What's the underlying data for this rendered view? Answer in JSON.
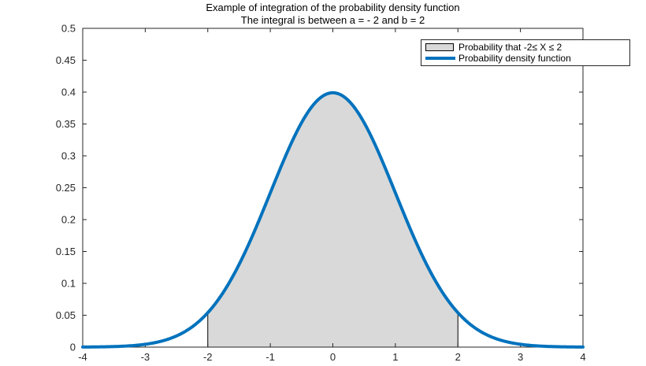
{
  "title": {
    "line1": "Example of integration of the probability density function",
    "line2": "The integral is between a = - 2 and b = 2"
  },
  "legend": {
    "position": "top-right",
    "entries": [
      {
        "label": "Probability that -2≤ X ≤ 2",
        "swatch": "area",
        "fill": "#D9D9D9",
        "edge": "#000000"
      },
      {
        "label": "Probability density function",
        "swatch": "line",
        "color": "#0072BD"
      }
    ]
  },
  "axes": {
    "box_color": "#262626",
    "tick_color": "#262626",
    "tick_label_color": "#262626",
    "tick_length": 5,
    "ticks_direction": "in",
    "box": true,
    "grid": false
  },
  "chart_data": {
    "type": "area",
    "title": "Example of integration of the probability density function",
    "subtitle": "The integral is between a = - 2 and b = 2",
    "xlabel": "",
    "ylabel": "",
    "xlim": [
      -4,
      4
    ],
    "ylim": [
      0,
      0.5
    ],
    "x_ticks": {
      "values": [
        -4,
        -3,
        -2,
        -1,
        0,
        1,
        2,
        3,
        4
      ],
      "labels": [
        "-4",
        "-3",
        "-2",
        "-1",
        "0",
        "1",
        "2",
        "3",
        "4"
      ]
    },
    "y_ticks": {
      "values": [
        0,
        0.05,
        0.1,
        0.15,
        0.2,
        0.25,
        0.3,
        0.35,
        0.4,
        0.45,
        0.5
      ],
      "labels": [
        "0",
        "0.05",
        "0.1",
        "0.15",
        "0.2",
        "0.25",
        "0.3",
        "0.35",
        "0.4",
        "0.45",
        "0.5"
      ]
    },
    "curve": {
      "name": "Probability density function",
      "color": "#0072BD",
      "line_width": 4,
      "distribution": {
        "type": "normal",
        "mean": 0,
        "sigma": 1
      },
      "samples": {
        "x": [
          -4,
          -3.5,
          -3,
          -2.5,
          -2,
          -1.5,
          -1,
          -0.5,
          0,
          0.5,
          1,
          1.5,
          2,
          2.5,
          3,
          3.5,
          4
        ],
        "y": [
          0.0001,
          0.0009,
          0.0044,
          0.0175,
          0.054,
          0.1295,
          0.242,
          0.3521,
          0.3989,
          0.3521,
          0.242,
          0.1295,
          0.054,
          0.0175,
          0.0044,
          0.0009,
          0.0001
        ]
      }
    },
    "shaded_region": {
      "name": "Probability that -2≤ X ≤ 2",
      "x_from": -2,
      "x_to": 2,
      "fill": "#D9D9D9",
      "edge": "#000000"
    },
    "legend_entries": [
      "Probability that -2≤ X ≤ 2",
      "Probability density function"
    ]
  }
}
